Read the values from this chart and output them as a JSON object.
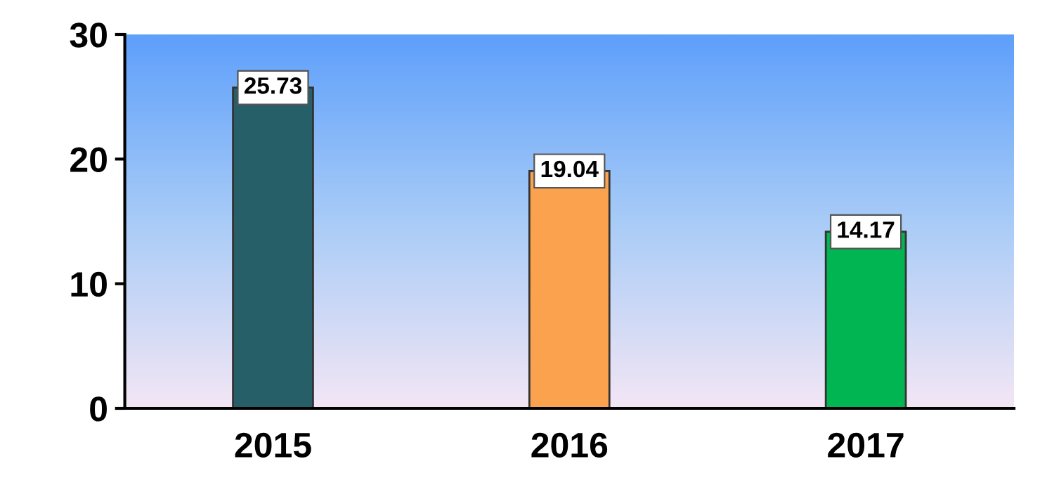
{
  "chart_data": {
    "type": "bar",
    "categories": [
      "2015",
      "2016",
      "2017"
    ],
    "values": [
      25.73,
      19.04,
      14.17
    ],
    "colors": [
      "#275f69",
      "#fba24f",
      "#00b552"
    ],
    "ylim": [
      0,
      30
    ],
    "yticks": [
      0,
      10,
      20,
      30
    ],
    "grid": false,
    "data_labels": true
  }
}
